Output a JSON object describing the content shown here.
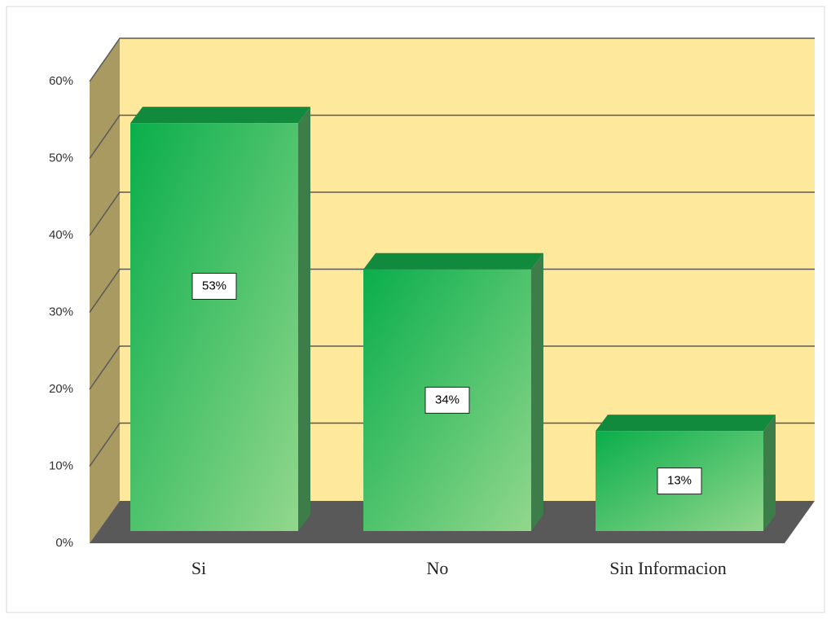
{
  "chart_data": {
    "type": "bar3d",
    "categories": [
      "Si",
      "No",
      "Sin Informacion"
    ],
    "values": [
      53,
      34,
      13
    ],
    "value_labels": [
      "53%",
      "34%",
      "13%"
    ],
    "ylim": [
      0,
      60
    ],
    "yticks": [
      {
        "value": 0,
        "label": "0%"
      },
      {
        "value": 10,
        "label": "10%"
      },
      {
        "value": 20,
        "label": "20%"
      },
      {
        "value": 30,
        "label": "30%"
      },
      {
        "value": 40,
        "label": "40%"
      },
      {
        "value": 50,
        "label": "50%"
      },
      {
        "value": 60,
        "label": "60%"
      }
    ],
    "grid": true,
    "color": "#12b050"
  }
}
